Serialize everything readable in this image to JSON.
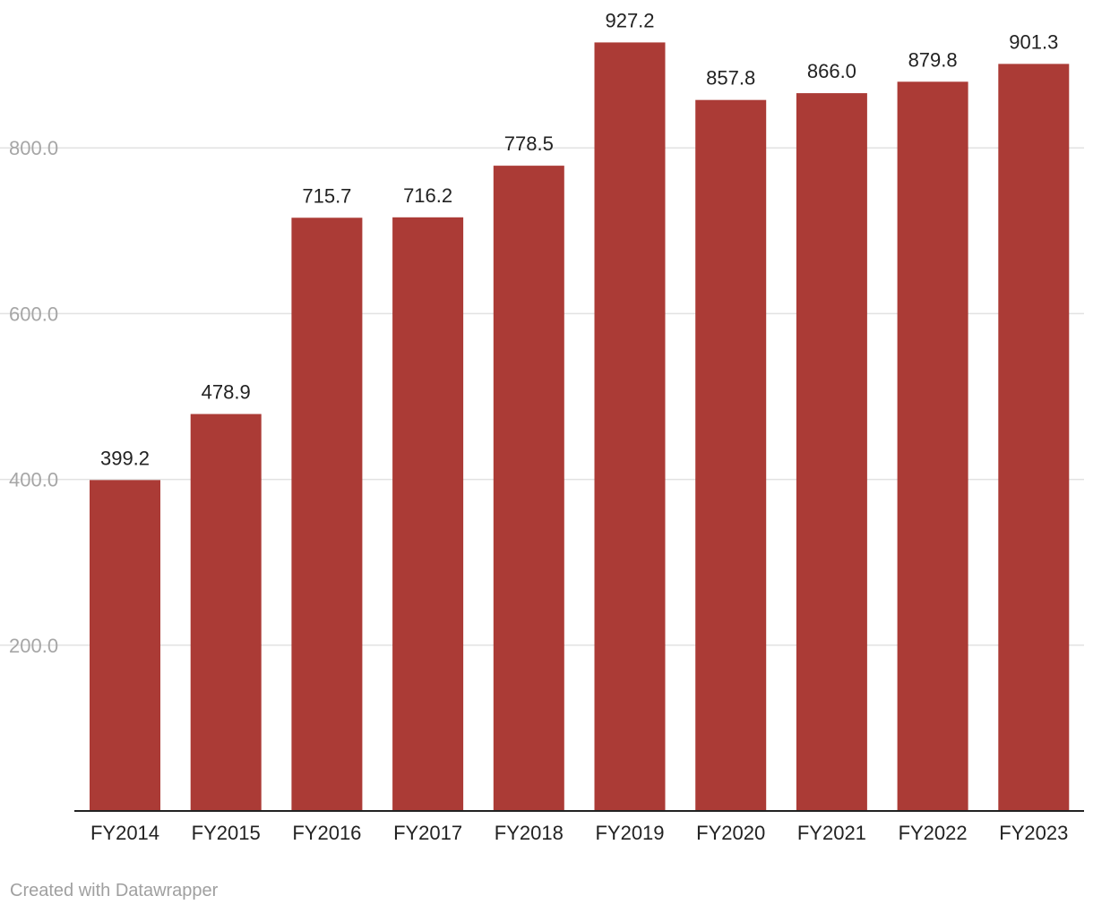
{
  "footer": {
    "credit": "Created with Datawrapper"
  },
  "colors": {
    "bar": "#ab3b36",
    "grid": "#e2e2e2",
    "axis": "#222222",
    "tick_label": "#a6a6a6"
  },
  "chart_data": {
    "type": "bar",
    "title": "",
    "xlabel": "",
    "ylabel": "",
    "categories": [
      "FY2014",
      "FY2015",
      "FY2016",
      "FY2017",
      "FY2018",
      "FY2019",
      "FY2020",
      "FY2021",
      "FY2022",
      "FY2023"
    ],
    "values": [
      399.2,
      478.9,
      715.7,
      716.2,
      778.5,
      927.2,
      857.8,
      866.0,
      879.8,
      901.3
    ],
    "value_labels": [
      "399.2",
      "478.9",
      "715.7",
      "716.2",
      "778.5",
      "927.2",
      "857.8",
      "866.0",
      "879.8",
      "901.3"
    ],
    "y_ticks": [
      200,
      400,
      600,
      800
    ],
    "y_tick_labels": [
      "200.0",
      "400.0",
      "600.0",
      "800.0"
    ],
    "ylim": [
      0,
      1000
    ],
    "grid": true,
    "legend": "none"
  }
}
